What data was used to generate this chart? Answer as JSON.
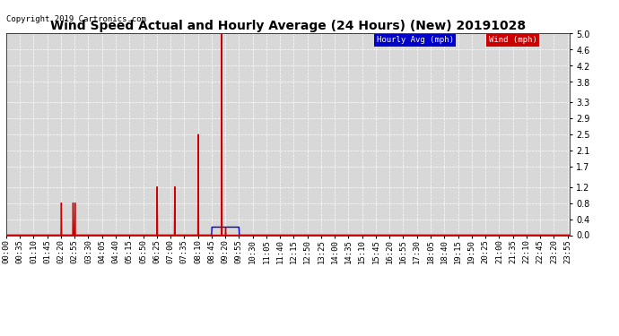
{
  "title": "Wind Speed Actual and Hourly Average (24 Hours) (New) 20191028",
  "copyright": "Copyright 2019 Cartronics.com",
  "ylabel_values": [
    0.0,
    0.4,
    0.8,
    1.2,
    1.7,
    2.1,
    2.5,
    2.9,
    3.3,
    3.8,
    4.2,
    4.6,
    5.0
  ],
  "ylim": [
    0.0,
    5.2
  ],
  "legend_hourly_label": "Hourly Avg (mph)",
  "legend_wind_label": "Wind (mph)",
  "legend_hourly_bg": "#0000cc",
  "legend_wind_bg": "#cc0000",
  "bg_color": "#ffffff",
  "plot_bg_color": "#d8d8d8",
  "grid_color": "#ffffff",
  "title_fontsize": 10,
  "tick_fontsize": 6.5,
  "wind_color": "#cc0000",
  "hourly_color": "#0000cc",
  "wind_lw": 1.0,
  "hourly_lw": 1.0,
  "xtick_step_min": 35,
  "data_step_min": 1
}
